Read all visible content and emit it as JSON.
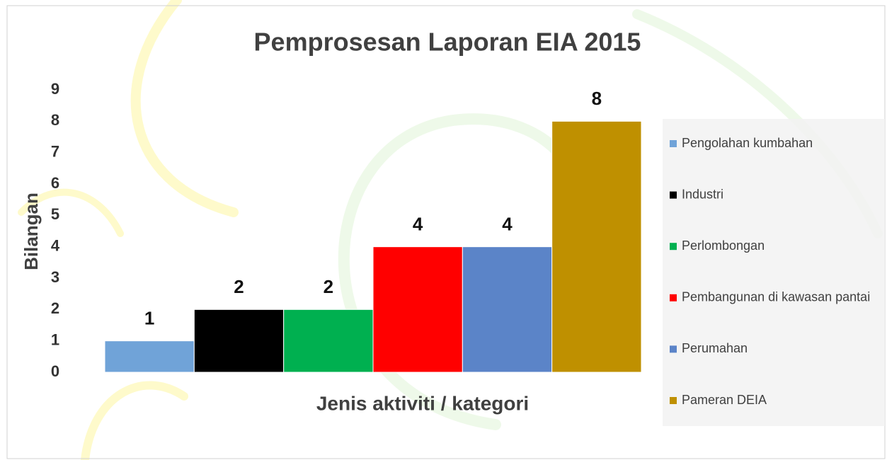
{
  "chart_data": {
    "type": "bar",
    "title": "Pemprosesan Laporan EIA 2015",
    "x_label": "Jenis aktiviti / kategori",
    "y_label": "Bilangan",
    "categories": [
      null
    ],
    "series": [
      {
        "name": "Pengolahan kumbahan",
        "color": "#70a3d8",
        "values": [
          1
        ]
      },
      {
        "name": "Industri",
        "color": "#000000",
        "values": [
          2
        ]
      },
      {
        "name": "Perlombongan",
        "color": "#00b050",
        "values": [
          2
        ]
      },
      {
        "name": "Pembangunan di kawasan pantai",
        "color": "#ff0000",
        "values": [
          4
        ]
      },
      {
        "name": "Perumahan",
        "color": "#5b84c8",
        "values": [
          4
        ]
      },
      {
        "name": "Pameran DEIA",
        "color": "#bf9000",
        "values": [
          8
        ]
      }
    ],
    "ylim": [
      0,
      9
    ],
    "yticks": [
      0,
      1,
      2,
      3,
      4,
      5,
      6,
      7,
      8,
      9
    ],
    "grid": false,
    "legend": "right"
  }
}
